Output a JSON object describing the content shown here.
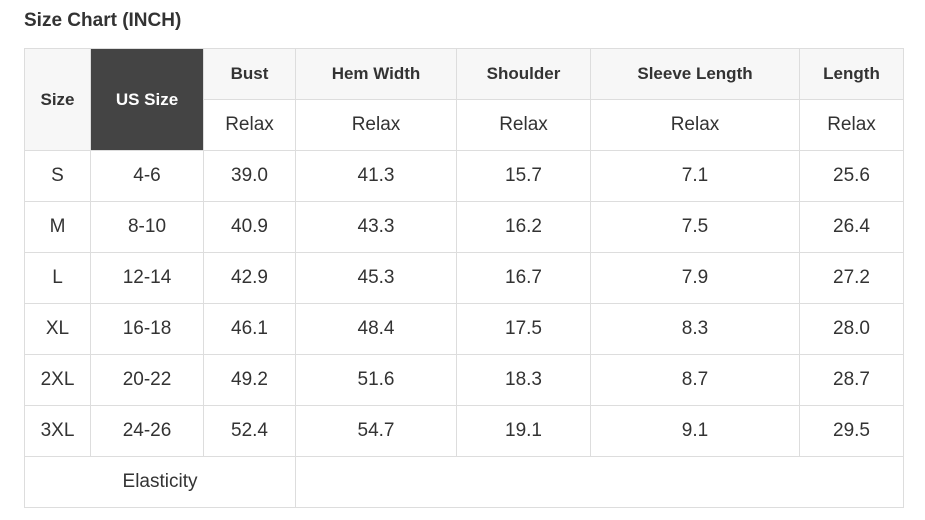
{
  "header": {
    "title": "Size Chart (INCH)"
  },
  "table": {
    "columns": [
      "Size",
      "US Size",
      "Bust",
      "Hem Width",
      "Shoulder",
      "Sleeve Length",
      "Length"
    ],
    "subheader": [
      "Relax",
      "Relax",
      "Relax",
      "Relax",
      "Relax"
    ],
    "rows": [
      [
        "S",
        "4-6",
        "39.0",
        "41.3",
        "15.7",
        "7.1",
        "25.6"
      ],
      [
        "M",
        "8-10",
        "40.9",
        "43.3",
        "16.2",
        "7.5",
        "26.4"
      ],
      [
        "L",
        "12-14",
        "42.9",
        "45.3",
        "16.7",
        "7.9",
        "27.2"
      ],
      [
        "XL",
        "16-18",
        "46.1",
        "48.4",
        "17.5",
        "8.3",
        "28.0"
      ],
      [
        "2XL",
        "20-22",
        "49.2",
        "51.6",
        "18.3",
        "8.7",
        "28.7"
      ],
      [
        "3XL",
        "24-26",
        "52.4",
        "54.7",
        "19.1",
        "9.1",
        "29.5"
      ]
    ],
    "footer": "Elasticity"
  }
}
